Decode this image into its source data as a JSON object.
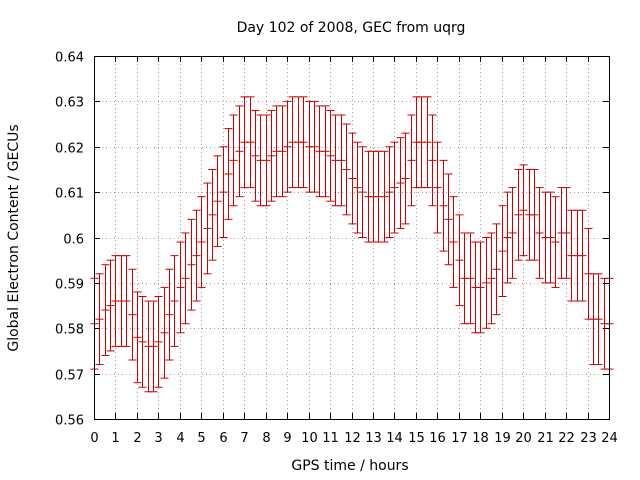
{
  "chart_data": {
    "type": "scatter",
    "title": "Day 102 of 2008, GEC from uqrg",
    "xlabel": "GPS time / hours",
    "ylabel": "Global Electron Content / GECUs",
    "xlim": [
      0,
      24
    ],
    "ylim": [
      0.56,
      0.64
    ],
    "xticks": [
      0,
      1,
      2,
      3,
      4,
      5,
      6,
      7,
      8,
      9,
      10,
      11,
      12,
      13,
      14,
      15,
      16,
      17,
      18,
      19,
      20,
      21,
      22,
      23,
      24
    ],
    "yticks": [
      0.56,
      0.57,
      0.58,
      0.59,
      0.6,
      0.61,
      0.62,
      0.63,
      0.64
    ],
    "ytick_labels": [
      "0.56",
      "0.57",
      "0.58",
      "0.59",
      "0.6",
      "0.61",
      "0.62",
      "0.63",
      "0.64"
    ],
    "grid": true,
    "error_bar_half_width": 0.01,
    "color": "#cc0000",
    "x": [
      0.0,
      0.25,
      0.5,
      0.75,
      1.0,
      1.25,
      1.5,
      1.75,
      2.0,
      2.25,
      2.5,
      2.75,
      3.0,
      3.25,
      3.5,
      3.75,
      4.0,
      4.25,
      4.5,
      4.75,
      5.0,
      5.25,
      5.5,
      5.75,
      6.0,
      6.25,
      6.5,
      6.75,
      7.0,
      7.25,
      7.5,
      7.75,
      8.0,
      8.25,
      8.5,
      8.75,
      9.0,
      9.25,
      9.5,
      9.75,
      10.0,
      10.25,
      10.5,
      10.75,
      11.0,
      11.25,
      11.5,
      11.75,
      12.0,
      12.25,
      12.5,
      12.75,
      13.0,
      13.25,
      13.5,
      13.75,
      14.0,
      14.25,
      14.5,
      14.75,
      15.0,
      15.25,
      15.5,
      15.75,
      16.0,
      16.25,
      16.5,
      16.75,
      17.0,
      17.25,
      17.5,
      17.75,
      18.0,
      18.25,
      18.5,
      18.75,
      19.0,
      19.25,
      19.5,
      19.75,
      20.0,
      20.25,
      20.5,
      20.75,
      21.0,
      21.25,
      21.5,
      21.75,
      22.0,
      22.25,
      22.5,
      22.75,
      23.0,
      23.25,
      23.5,
      23.75,
      24.0
    ],
    "y": [
      0.581,
      0.582,
      0.584,
      0.585,
      0.586,
      0.586,
      0.586,
      0.583,
      0.578,
      0.577,
      0.576,
      0.576,
      0.577,
      0.579,
      0.583,
      0.586,
      0.589,
      0.591,
      0.594,
      0.596,
      0.599,
      0.602,
      0.605,
      0.608,
      0.61,
      0.614,
      0.617,
      0.619,
      0.621,
      0.621,
      0.618,
      0.617,
      0.617,
      0.618,
      0.619,
      0.619,
      0.62,
      0.621,
      0.621,
      0.621,
      0.62,
      0.62,
      0.619,
      0.619,
      0.618,
      0.617,
      0.617,
      0.615,
      0.613,
      0.611,
      0.61,
      0.609,
      0.609,
      0.609,
      0.609,
      0.61,
      0.611,
      0.612,
      0.613,
      0.617,
      0.621,
      0.621,
      0.621,
      0.617,
      0.611,
      0.607,
      0.604,
      0.599,
      0.595,
      0.591,
      0.591,
      0.589,
      0.589,
      0.59,
      0.591,
      0.593,
      0.597,
      0.6,
      0.601,
      0.605,
      0.606,
      0.605,
      0.605,
      0.601,
      0.6,
      0.6,
      0.599,
      0.601,
      0.601,
      0.596,
      0.596,
      0.596,
      0.592,
      0.582,
      0.582,
      0.581,
      0.581
    ]
  }
}
